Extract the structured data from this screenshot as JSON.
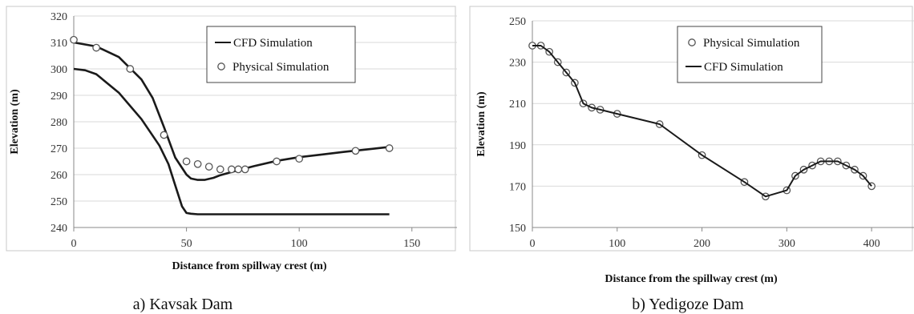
{
  "chart_data": [
    {
      "type": "line",
      "caption": "a)   Kavsak Dam",
      "xlabel": "Distance from spillway crest (m)",
      "ylabel": "Elevation (m)",
      "xlim": [
        0,
        170
      ],
      "ylim": [
        240,
        320
      ],
      "xticks": [
        0,
        50,
        100,
        150
      ],
      "yticks": [
        240,
        250,
        260,
        270,
        280,
        290,
        300,
        310,
        320
      ],
      "grid": "horizontal",
      "legend_position": "top-right",
      "series": [
        {
          "name": "CFD Simulation",
          "style": "line",
          "x": [
            0,
            10,
            20,
            30,
            35,
            40,
            45,
            50,
            52,
            55,
            58,
            62,
            65,
            70,
            80,
            90,
            100,
            110,
            120,
            130,
            140
          ],
          "y": [
            310,
            308.5,
            304.5,
            296,
            289,
            278,
            266.5,
            260,
            258.5,
            258,
            258,
            258.8,
            259.8,
            261,
            263.2,
            265.2,
            266.6,
            267.6,
            268.6,
            269.5,
            270.5
          ]
        },
        {
          "name": "",
          "style": "line",
          "x": [
            0,
            5,
            10,
            20,
            30,
            38,
            42,
            45,
            48,
            50,
            52,
            55,
            60,
            80,
            100,
            120,
            140
          ],
          "y": [
            300,
            299.5,
            298,
            291,
            281,
            271,
            264,
            256,
            248,
            245.5,
            245.2,
            245,
            245,
            245,
            245,
            245,
            245
          ]
        },
        {
          "name": "Physical Simulation",
          "style": "markers",
          "x": [
            0,
            10,
            25,
            40,
            50,
            55,
            60,
            65,
            70,
            73,
            76,
            90,
            100,
            125,
            140
          ],
          "y": [
            311,
            308,
            300,
            275,
            265,
            264,
            263,
            262,
            262,
            262,
            262,
            265,
            266,
            269,
            270
          ]
        }
      ]
    },
    {
      "type": "line",
      "caption": "b) Yedigoze Dam",
      "xlabel": "Distance from the spillway crest (m)",
      "ylabel": "Elevation (m)",
      "xlim": [
        0,
        450
      ],
      "ylim": [
        150,
        250
      ],
      "xticks": [
        0,
        100,
        200,
        300,
        400
      ],
      "yticks": [
        150,
        170,
        190,
        210,
        230,
        250
      ],
      "grid": "horizontal",
      "legend_position": "top-right",
      "series": [
        {
          "name": "Physical Simulation",
          "style": "markers",
          "x": [
            0,
            10,
            20,
            30,
            40,
            50,
            60,
            70,
            80,
            100,
            150,
            200,
            250,
            275,
            300,
            310,
            320,
            330,
            340,
            350,
            360,
            370,
            380,
            390,
            400
          ],
          "y": [
            238,
            238,
            235,
            230,
            225,
            220,
            210,
            208,
            207,
            205,
            200,
            185,
            172,
            165,
            168,
            175,
            178,
            180,
            182,
            182,
            182,
            180,
            178,
            175,
            170
          ]
        },
        {
          "name": "CFD Simulation",
          "style": "line",
          "x": [
            0,
            10,
            20,
            30,
            40,
            50,
            60,
            70,
            80,
            100,
            150,
            200,
            250,
            275,
            300,
            310,
            320,
            330,
            340,
            350,
            360,
            370,
            380,
            390,
            400
          ],
          "y": [
            238,
            238,
            235,
            230,
            225,
            220,
            210,
            208,
            207,
            205,
            200,
            185,
            172,
            165,
            168,
            175,
            178,
            180,
            182,
            182,
            182,
            180,
            178,
            175,
            170
          ]
        }
      ]
    }
  ]
}
